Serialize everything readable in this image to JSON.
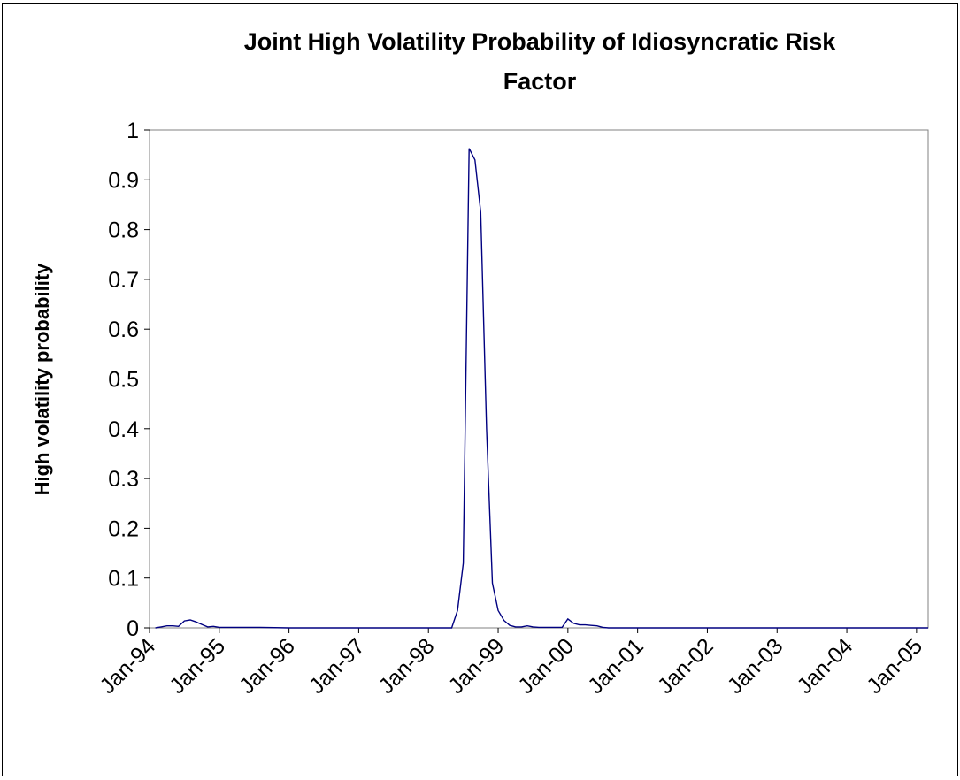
{
  "chart_data": {
    "type": "line",
    "title_lines": [
      "Joint High Volatility Probability of Idiosyncratic Risk",
      "Factor"
    ],
    "xlabel": "",
    "ylabel": "High volatility probability",
    "ylim": [
      0,
      1
    ],
    "yticks": [
      0,
      0.1,
      0.2,
      0.3,
      0.4,
      0.5,
      0.6,
      0.7,
      0.8,
      0.9,
      1
    ],
    "ytick_labels": [
      "0",
      "0.1",
      "0.2",
      "0.3",
      "0.4",
      "0.5",
      "0.6",
      "0.7",
      "0.8",
      "0.9",
      "1"
    ],
    "xtick_labels": [
      "Jan-94",
      "Jan-95",
      "Jan-96",
      "Jan-97",
      "Jan-98",
      "Jan-99",
      "Jan-00",
      "Jan-01",
      "Jan-02",
      "Jan-03",
      "Jan-04",
      "Jan-05"
    ],
    "xrange": [
      "Jan-94",
      "Mar-05"
    ],
    "grid": false,
    "line_color": "#000080",
    "series": [
      {
        "x": [
          "Feb-94",
          "Mar-94",
          "Apr-94",
          "May-94",
          "Jun-94",
          "Jul-94",
          "Aug-94",
          "Sep-94",
          "Oct-94",
          "Nov-94",
          "Dec-94",
          "Jan-95",
          "Mar-95",
          "Jun-95",
          "Aug-95",
          "Jan-96",
          "Jan-97",
          "Jan-98",
          "Apr-98",
          "May-98",
          "Jun-98",
          "Jul-98",
          "Aug-98",
          "Sep-98",
          "Oct-98",
          "Nov-98",
          "Dec-98",
          "Jan-99",
          "Feb-99",
          "Mar-99",
          "Apr-99",
          "May-99",
          "Jun-99",
          "Jul-99",
          "Aug-99",
          "Sep-99",
          "Oct-99",
          "Nov-99",
          "Dec-99",
          "Jan-00",
          "Feb-00",
          "Mar-00",
          "Apr-00",
          "May-00",
          "Jun-00",
          "Jul-00",
          "Aug-00",
          "Jan-01",
          "Jan-02",
          "Jan-03",
          "Jan-04",
          "Jan-05",
          "Mar-05"
        ],
        "values": [
          0.0,
          0.002,
          0.004,
          0.004,
          0.003,
          0.014,
          0.016,
          0.012,
          0.007,
          0.002,
          0.003,
          0.001,
          0.001,
          0.001,
          0.001,
          0.0,
          0.0,
          0.0,
          0.0,
          0.0,
          0.035,
          0.13,
          0.963,
          0.94,
          0.835,
          0.4,
          0.09,
          0.035,
          0.015,
          0.005,
          0.002,
          0.002,
          0.004,
          0.002,
          0.001,
          0.001,
          0.001,
          0.001,
          0.001,
          0.018,
          0.009,
          0.006,
          0.006,
          0.005,
          0.004,
          0.001,
          0.0,
          0.0,
          0.0,
          0.0,
          0.0,
          0.0,
          0.0
        ]
      }
    ]
  }
}
